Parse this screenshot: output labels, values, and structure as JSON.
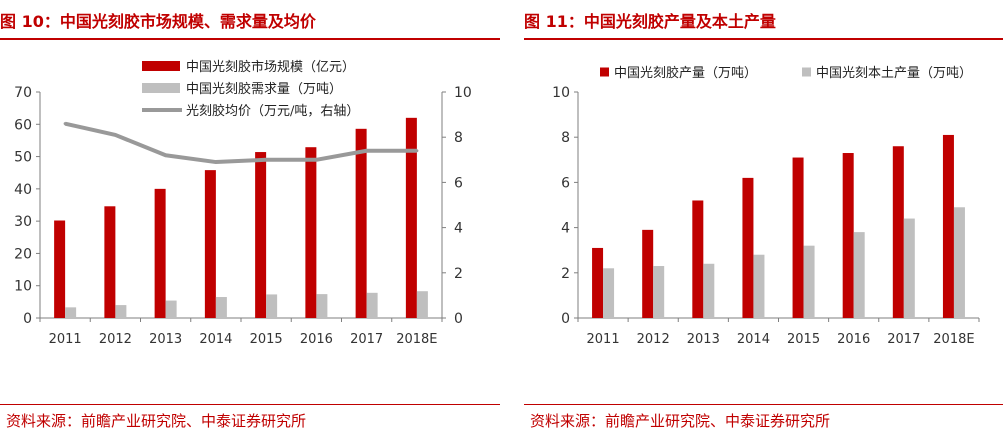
{
  "colors": {
    "accent": "#c00000",
    "bar_primary": "#c00000",
    "bar_secondary": "#bfbfbf",
    "line": "#999999"
  },
  "charts": {
    "left": {
      "title": "图 10：中国光刻胶市场规模、需求量及均价",
      "source": "资料来源：前瞻产业研究院、中泰证券研究所",
      "chart_data": {
        "type": "bar",
        "categories": [
          "2011",
          "2012",
          "2013",
          "2014",
          "2015",
          "2016",
          "2017",
          "2018E"
        ],
        "ylim": [
          0,
          70
        ],
        "yticks": [
          "0",
          "10",
          "20",
          "30",
          "40",
          "50",
          "60",
          "70"
        ],
        "y2lim": [
          0,
          10
        ],
        "y2ticks": [
          "0",
          "2",
          "4",
          "6",
          "8",
          "10"
        ],
        "legend_position": "top-right",
        "series": [
          {
            "name": "中国光刻胶市场规模（亿元）",
            "type": "bar",
            "axis": "left",
            "color": "#c00000",
            "values": [
              30.2,
              34.6,
              40.0,
              45.8,
              51.4,
              52.9,
              58.6,
              62.0
            ]
          },
          {
            "name": "中国光刻胶需求量（万吨）",
            "type": "bar",
            "axis": "left",
            "color": "#bfbfbf",
            "values": [
              3.3,
              4.0,
              5.4,
              6.5,
              7.3,
              7.4,
              7.8,
              8.3
            ]
          },
          {
            "name": "光刻胶均价（万元/吨，右轴）",
            "type": "line",
            "axis": "right",
            "color": "#999999",
            "values": [
              8.6,
              8.1,
              7.2,
              6.9,
              7.0,
              7.0,
              7.4,
              7.4
            ]
          }
        ]
      }
    },
    "right": {
      "title": "图 11：中国光刻胶产量及本土产量",
      "source": "资料来源：前瞻产业研究院、中泰证券研究所",
      "chart_data": {
        "type": "bar",
        "categories": [
          "2011",
          "2012",
          "2013",
          "2014",
          "2015",
          "2016",
          "2017",
          "2018E"
        ],
        "ylim": [
          0,
          10
        ],
        "yticks": [
          "0",
          "2",
          "4",
          "6",
          "8",
          "10"
        ],
        "legend_position": "top",
        "series": [
          {
            "name": "中国光刻胶产量（万吨）",
            "type": "bar",
            "color": "#c00000",
            "values": [
              3.1,
              3.9,
              5.2,
              6.2,
              7.1,
              7.3,
              7.6,
              8.1
            ]
          },
          {
            "name": "中国光刻本土产量（万吨）",
            "type": "bar",
            "color": "#bfbfbf",
            "values": [
              2.2,
              2.3,
              2.4,
              2.8,
              3.2,
              3.8,
              4.4,
              4.9
            ]
          }
        ]
      }
    }
  }
}
